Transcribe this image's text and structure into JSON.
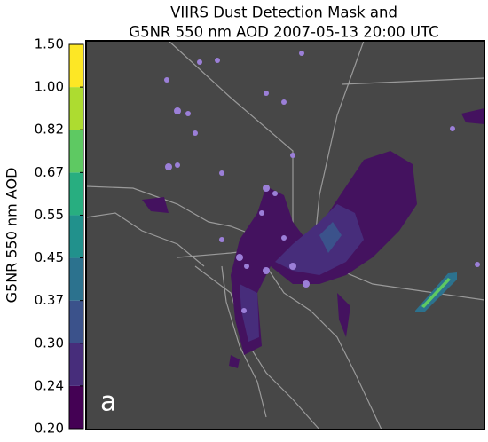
{
  "chart_data": {
    "type": "map",
    "title": [
      "VIIRS Dust Detection Mask and",
      "G5NR 550 nm AOD 2007-05-13 20:00 UTC"
    ],
    "colorbar": {
      "label": "G5NR 550 nm AOD",
      "ticks": [
        {
          "value": 0.2,
          "label": "0.20"
        },
        {
          "value": 0.24,
          "label": "0.24"
        },
        {
          "value": 0.3,
          "label": "0.30"
        },
        {
          "value": 0.37,
          "label": "0.37"
        },
        {
          "value": 0.45,
          "label": "0.45"
        },
        {
          "value": 0.55,
          "label": "0.55"
        },
        {
          "value": 0.67,
          "label": "0.67"
        },
        {
          "value": 0.82,
          "label": "0.82"
        },
        {
          "value": 1.0,
          "label": "1.00"
        },
        {
          "value": 1.5,
          "label": "1.50"
        }
      ],
      "colors": [
        "#440154",
        "#472d7b",
        "#3b528b",
        "#2c728e",
        "#21918c",
        "#28ae80",
        "#5ec962",
        "#addc30",
        "#fde725"
      ]
    },
    "panel_label": "a"
  }
}
